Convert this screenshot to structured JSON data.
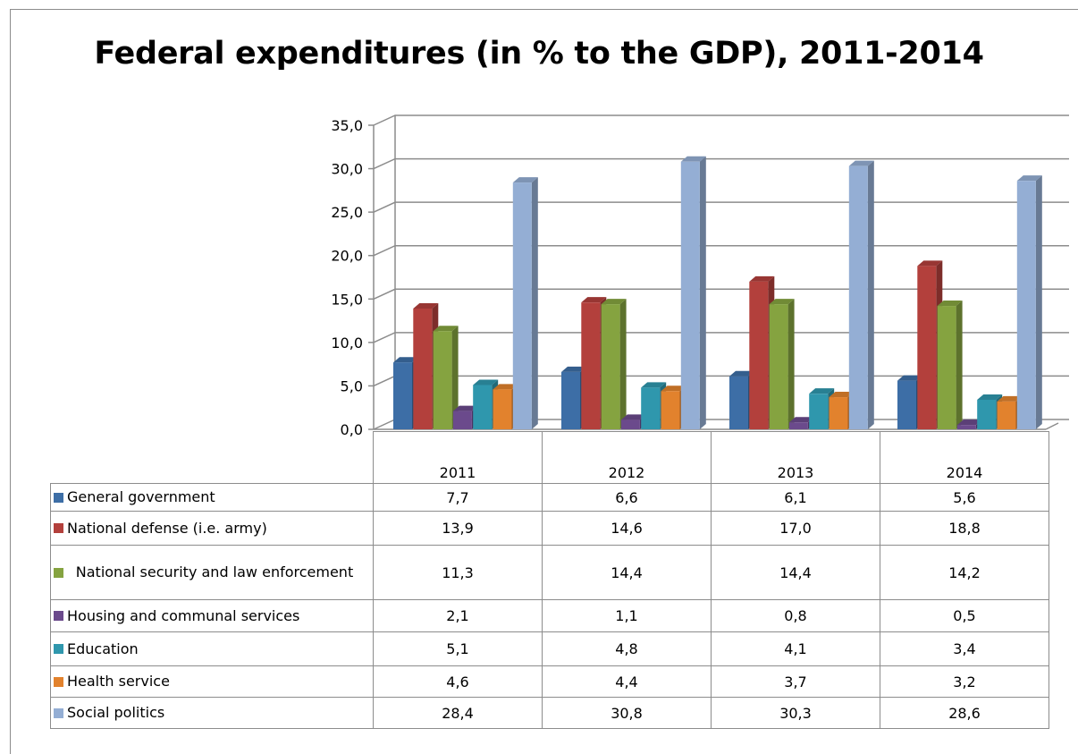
{
  "chart_data": {
    "type": "bar",
    "title": "Federal expenditures (in % to the GDP), 2011-2014",
    "categories": [
      "2011",
      "2012",
      "2013",
      "2014"
    ],
    "ylim": [
      0,
      35
    ],
    "yticks": [
      "0,0",
      "5,0",
      "10,0",
      "15,0",
      "20,0",
      "25,0",
      "30,0",
      "35,0"
    ],
    "grid": true,
    "legend": "data-table-below",
    "series": [
      {
        "name": "General government",
        "color": "#3d6ea6",
        "values": [
          7.7,
          6.6,
          6.1,
          5.6
        ],
        "labels": [
          "7,7",
          "6,6",
          "6,1",
          "5,6"
        ]
      },
      {
        "name": "National defense (i.e. army)",
        "color": "#b3403c",
        "values": [
          13.9,
          14.6,
          17.0,
          18.8
        ],
        "labels": [
          "13,9",
          "14,6",
          "17,0",
          "18,8"
        ]
      },
      {
        "name": "National security and law enforcement",
        "color": "#85a340",
        "values": [
          11.3,
          14.4,
          14.4,
          14.2
        ],
        "labels": [
          "11,3",
          "14,4",
          "14,4",
          "14,2"
        ]
      },
      {
        "name": "Housing and communal services",
        "color": "#6b4a8c",
        "values": [
          2.1,
          1.1,
          0.8,
          0.5
        ],
        "labels": [
          "2,1",
          "1,1",
          "0,8",
          "0,5"
        ]
      },
      {
        "name": "Education",
        "color": "#2f97ad",
        "values": [
          5.1,
          4.8,
          4.1,
          3.4
        ],
        "labels": [
          "5,1",
          "4,8",
          "4,1",
          "3,4"
        ]
      },
      {
        "name": "Health service",
        "color": "#e2822d",
        "values": [
          4.6,
          4.4,
          3.7,
          3.2
        ],
        "labels": [
          "4,6",
          "4,4",
          "3,7",
          "3,2"
        ]
      },
      {
        "name": "Social politics",
        "color": "#94aed4",
        "values": [
          28.4,
          30.8,
          30.3,
          28.6
        ],
        "labels": [
          "28,4",
          "30,8",
          "30,3",
          "28,6"
        ]
      }
    ]
  }
}
